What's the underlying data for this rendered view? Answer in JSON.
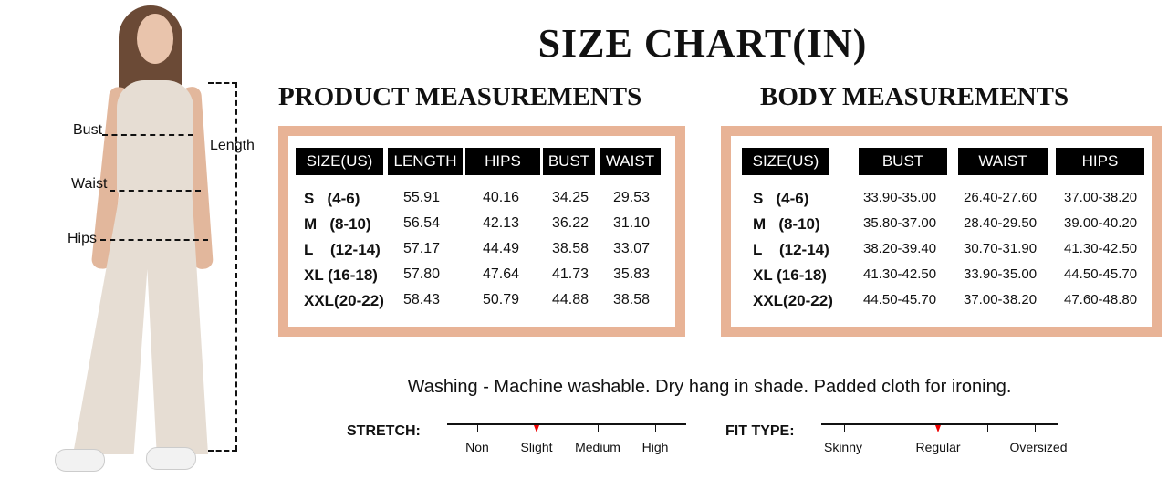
{
  "title": "SIZE CHART(IN)",
  "product": {
    "heading": "PRODUCT MEASUREMENTS",
    "columns": [
      "SIZE(US)",
      "LENGTH",
      "HIPS",
      "BUST",
      "WAIST"
    ],
    "rows": [
      [
        "S   (4-6)",
        "55.91",
        "40.16",
        "34.25",
        "29.53"
      ],
      [
        "M   (8-10)",
        "56.54",
        "42.13",
        "36.22",
        "31.10"
      ],
      [
        "L    (12-14)",
        "57.17",
        "44.49",
        "38.58",
        "33.07"
      ],
      [
        "XL (16-18)",
        "57.80",
        "47.64",
        "41.73",
        "35.83"
      ],
      [
        "XXL(20-22)",
        "58.43",
        "50.79",
        "44.88",
        "38.58"
      ]
    ]
  },
  "body": {
    "heading": "BODY MEASUREMENTS",
    "columns": [
      "SIZE(US)",
      "BUST",
      "WAIST",
      "HIPS"
    ],
    "rows": [
      [
        "S   (4-6)",
        "33.90-35.00",
        "26.40-27.60",
        "37.00-38.20"
      ],
      [
        "M   (8-10)",
        "35.80-37.00",
        "28.40-29.50",
        "39.00-40.20"
      ],
      [
        "L    (12-14)",
        "38.20-39.40",
        "30.70-31.90",
        "41.30-42.50"
      ],
      [
        "XL (16-18)",
        "41.30-42.50",
        "33.90-35.00",
        "44.50-45.70"
      ],
      [
        "XXL(20-22)",
        "44.50-45.70",
        "37.00-38.20",
        "47.60-48.80"
      ]
    ]
  },
  "model_labels": {
    "bust": "Bust",
    "waist": "Waist",
    "hips": "Hips",
    "length": "Length"
  },
  "washing": "Washing - Machine washable. Dry hang in shade. Padded cloth for ironing.",
  "stretch": {
    "label": "STRETCH:",
    "options": [
      "Non",
      "Slight",
      "Medium",
      "High"
    ],
    "selected": "Slight"
  },
  "fit": {
    "label": "FIT TYPE:",
    "options": [
      "Skinny",
      "Regular",
      "Oversized"
    ],
    "selected": "Regular"
  },
  "colors": {
    "frame": "#e8b396",
    "marker": "#e00000",
    "garment": "#e6ddd3"
  }
}
